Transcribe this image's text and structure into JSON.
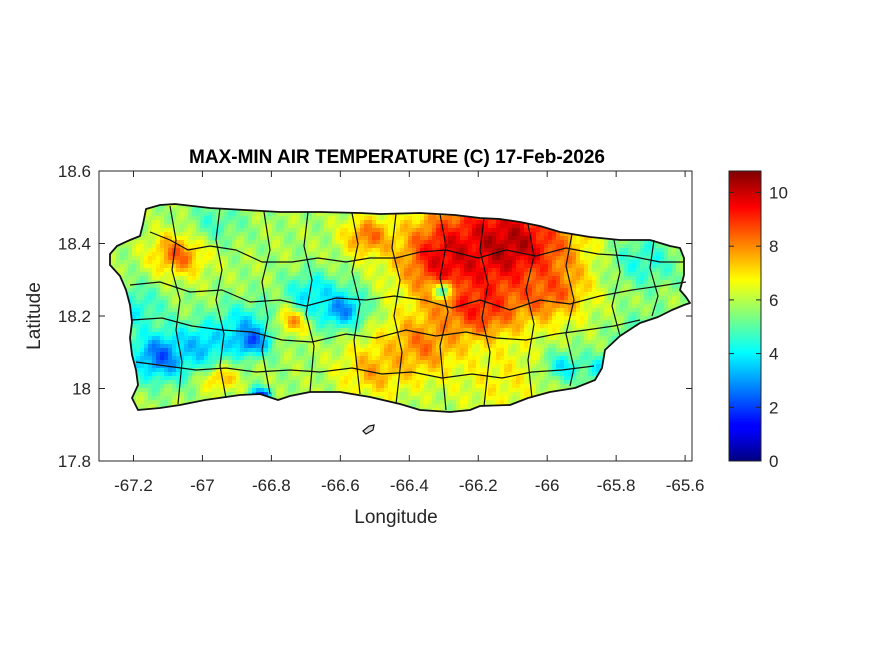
{
  "chart_data": {
    "type": "heatmap",
    "title": "MAX-MIN AIR TEMPERATURE (C) 17-Feb-2026",
    "xlabel": "Longitude",
    "ylabel": "Latitude",
    "xlim": [
      -67.3,
      -65.58
    ],
    "ylim": [
      17.8,
      18.6
    ],
    "xticks": [
      -67.2,
      -67,
      -66.8,
      -66.6,
      -66.4,
      -66.2,
      -66,
      -65.8,
      -65.6
    ],
    "xtick_labels": [
      "-67.2",
      "-67",
      "-66.8",
      "-66.6",
      "-66.4",
      "-66.2",
      "-66",
      "-65.8",
      "-65.6"
    ],
    "yticks": [
      17.8,
      18,
      18.2,
      18.4,
      18.6
    ],
    "ytick_labels": [
      "17.8",
      "18",
      "18.2",
      "18.4",
      "18.6"
    ],
    "colorbar": {
      "colormap": "jet",
      "range": [
        0,
        10.8
      ],
      "ticks": [
        0,
        2,
        4,
        6,
        8,
        10
      ],
      "tick_labels": [
        "0",
        "2",
        "4",
        "6",
        "8",
        "10"
      ]
    },
    "field_background_value": 5.8,
    "field_features": [
      {
        "lon": -66.12,
        "lat": 18.39,
        "value": 10.4,
        "radius": 0.2
      },
      {
        "lon": -66.28,
        "lat": 18.36,
        "value": 9.8,
        "radius": 0.14
      },
      {
        "lon": -66.2,
        "lat": 18.22,
        "value": 9.3,
        "radius": 0.12
      },
      {
        "lon": -66.0,
        "lat": 18.27,
        "value": 8.6,
        "radius": 0.1
      },
      {
        "lon": -66.52,
        "lat": 18.42,
        "value": 8.3,
        "radius": 0.07
      },
      {
        "lon": -66.36,
        "lat": 18.12,
        "value": 8.2,
        "radius": 0.12
      },
      {
        "lon": -66.5,
        "lat": 18.05,
        "value": 7.6,
        "radius": 0.1
      },
      {
        "lon": -67.07,
        "lat": 18.37,
        "value": 8.4,
        "radius": 0.08
      },
      {
        "lon": -66.74,
        "lat": 18.19,
        "value": 8.8,
        "radius": 0.05
      },
      {
        "lon": -66.95,
        "lat": 18.03,
        "value": 7.8,
        "radius": 0.05
      },
      {
        "lon": -66.13,
        "lat": 18.03,
        "value": 6.8,
        "radius": 0.14
      },
      {
        "lon": -66.6,
        "lat": 18.22,
        "value": 2.6,
        "radius": 0.07
      },
      {
        "lon": -66.68,
        "lat": 18.26,
        "value": 3.8,
        "radius": 0.08
      },
      {
        "lon": -66.88,
        "lat": 18.17,
        "value": 3.8,
        "radius": 0.09
      },
      {
        "lon": -67.12,
        "lat": 18.09,
        "value": 2.3,
        "radius": 0.09
      },
      {
        "lon": -66.86,
        "lat": 18.13,
        "value": 2.2,
        "radius": 0.05
      },
      {
        "lon": -67.0,
        "lat": 18.12,
        "value": 3.4,
        "radius": 0.08
      },
      {
        "lon": -67.2,
        "lat": 18.22,
        "value": 4.2,
        "radius": 0.09
      },
      {
        "lon": -66.83,
        "lat": 17.98,
        "value": 1.8,
        "radius": 0.03
      },
      {
        "lon": -65.95,
        "lat": 18.06,
        "value": 4.0,
        "radius": 0.06
      },
      {
        "lon": -65.82,
        "lat": 18.05,
        "value": 3.6,
        "radius": 0.06
      },
      {
        "lon": -65.7,
        "lat": 18.13,
        "value": 4.1,
        "radius": 0.09
      },
      {
        "lon": -65.72,
        "lat": 18.35,
        "value": 4.4,
        "radius": 0.1
      },
      {
        "lon": -66.96,
        "lat": 18.46,
        "value": 4.8,
        "radius": 0.08
      },
      {
        "lon": -66.3,
        "lat": 18.27,
        "value": 5.0,
        "radius": 0.03
      }
    ]
  }
}
